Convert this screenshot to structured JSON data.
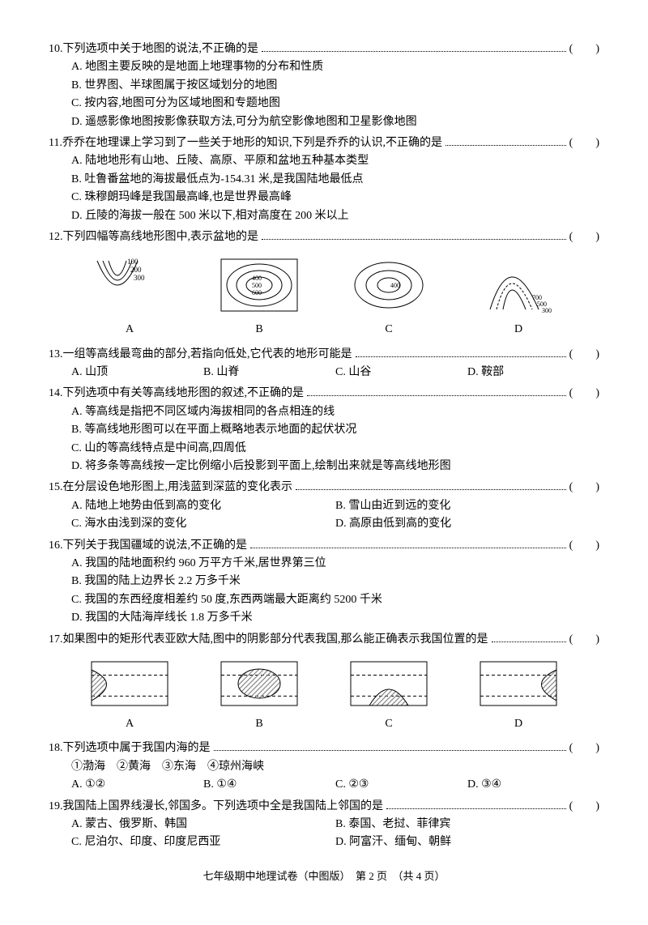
{
  "questions": [
    {
      "num": "10",
      "stem": "下列选项中关于地图的说法,不正确的是",
      "layout": "full",
      "options": [
        "A. 地图主要反映的是地面上地理事物的分布和性质",
        "B. 世界图、半球图属于按区域划分的地图",
        "C. 按内容,地图可分为区域地图和专题地图",
        "D. 遥感影像地图按影像获取方法,可分为航空影像地图和卫星影像地图"
      ]
    },
    {
      "num": "11",
      "stem": "乔乔在地理课上学习到了一些关于地形的知识,下列是乔乔的认识,不正确的是",
      "layout": "full",
      "options": [
        "A. 陆地地形有山地、丘陵、高原、平原和盆地五种基本类型",
        "B. 吐鲁番盆地的海拔最低点为-154.31 米,是我国陆地最低点",
        "C. 珠穆朗玛峰是我国最高峰,也是世界最高峰",
        "D. 丘陵的海拔一般在 500 米以下,相对高度在 200 米以上"
      ]
    },
    {
      "num": "12",
      "stem": "下列四幅等高线地形图中,表示盆地的是",
      "layout": "figure",
      "figure": "contour"
    },
    {
      "num": "13",
      "stem": "一组等高线最弯曲的部分,若指向低处,它代表的地形可能是",
      "layout": "quarter",
      "options": [
        "A. 山顶",
        "B. 山脊",
        "C. 山谷",
        "D. 鞍部"
      ]
    },
    {
      "num": "14",
      "stem": "下列选项中有关等高线地形图的叙述,不正确的是",
      "layout": "full",
      "options": [
        "A. 等高线是指把不同区域内海拔相同的各点相连的线",
        "B. 等高线地形图可以在平面上概略地表示地面的起伏状况",
        "C. 山的等高线特点是中间高,四周低",
        "D. 将多条等高线按一定比例缩小后投影到平面上,绘制出来就是等高线地形图"
      ]
    },
    {
      "num": "15",
      "stem": "在分层设色地形图上,用浅蓝到深蓝的变化表示",
      "layout": "half",
      "options": [
        "A. 陆地上地势由低到高的变化",
        "B. 雪山由近到远的变化",
        "C. 海水由浅到深的变化",
        "D. 高原由低到高的变化"
      ]
    },
    {
      "num": "16",
      "stem": "下列关于我国疆域的说法,不正确的是",
      "layout": "full",
      "options": [
        "A. 我国的陆地面积约 960 万平方千米,居世界第三位",
        "B. 我国的陆上边界长 2.2 万多千米",
        "C. 我国的东西经度相差约 50 度,东西两端最大距离约 5200 千米",
        "D. 我国的大陆海岸线长 1.8 万多千米"
      ]
    },
    {
      "num": "17",
      "stem": "如果图中的矩形代表亚欧大陆,图中的阴影部分代表我国,那么能正确表示我国位置的是",
      "layout": "figure",
      "figure": "rect"
    },
    {
      "num": "18",
      "stem": "下列选项中属于我国内海的是",
      "subline": "①渤海　②黄海　③东海　④琼州海峡",
      "layout": "quarter",
      "options": [
        "A. ①②",
        "B. ①④",
        "C. ②③",
        "D. ③④"
      ]
    },
    {
      "num": "19",
      "stem": "我国陆上国界线漫长,邻国多。下列选项中全是我国陆上邻国的是",
      "layout": "half",
      "options": [
        "A. 蒙古、俄罗斯、韩国",
        "B. 泰国、老挝、菲律宾",
        "C. 尼泊尔、印度、印度尼西亚",
        "D. 阿富汗、缅甸、朝鲜"
      ]
    }
  ],
  "figures": {
    "contour": {
      "labels": [
        "A",
        "B",
        "C",
        "D"
      ],
      "values": {
        "A": [
          "100",
          "200",
          "300"
        ],
        "B": [
          "400",
          "500",
          "600"
        ],
        "C": [
          "400"
        ],
        "D": [
          "700",
          "500",
          "300"
        ]
      }
    },
    "rect": {
      "labels": [
        "A",
        "B",
        "C",
        "D"
      ]
    }
  },
  "footer": "七年级期中地理试卷（中图版）　第 2 页　（共 4 页）",
  "style": {
    "stroke": "#000000",
    "hatch": "#888888",
    "figure_width": 110,
    "figure_height": 80
  }
}
